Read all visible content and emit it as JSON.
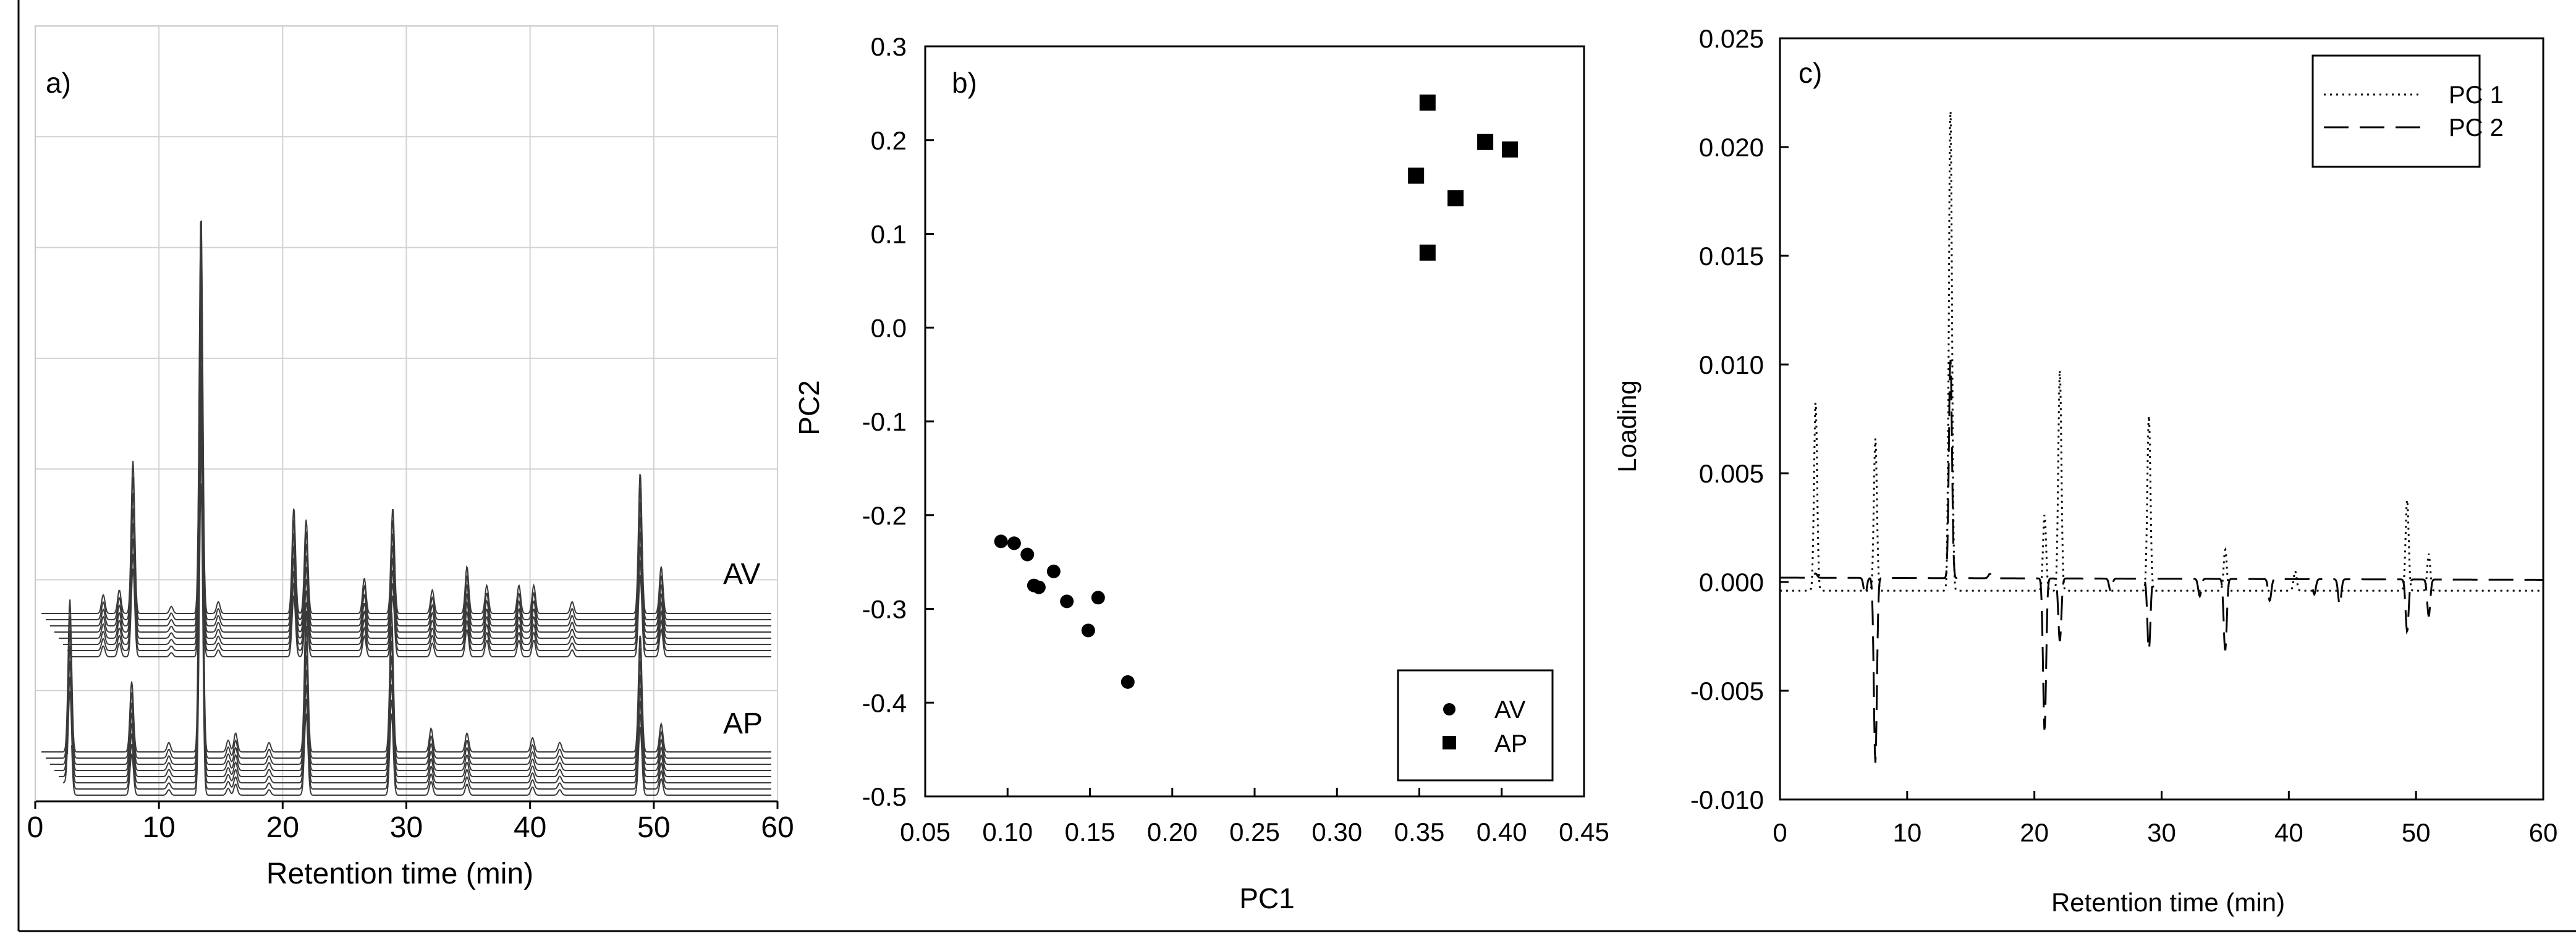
{
  "chart_data": [
    {
      "type": "line",
      "panel_label": "a)",
      "xlabel": "Retention time (min)",
      "ylabel": "",
      "xlim": [
        0,
        60
      ],
      "xticks": [
        0,
        10,
        20,
        30,
        40,
        50,
        60
      ],
      "grid": true,
      "annotations": [
        "AV",
        "AP"
      ],
      "groups": [
        {
          "name": "AV",
          "count": 8,
          "peaks": [
            [
              5.5,
              0.08
            ],
            [
              6.8,
              0.1
            ],
            [
              7.9,
              0.65
            ],
            [
              11.0,
              0.03
            ],
            [
              13.4,
              1.7
            ],
            [
              14.8,
              0.05
            ],
            [
              20.9,
              0.45
            ],
            [
              21.9,
              0.4
            ],
            [
              26.6,
              0.15
            ],
            [
              28.9,
              0.45
            ],
            [
              32.1,
              0.1
            ],
            [
              34.9,
              0.2
            ],
            [
              36.5,
              0.12
            ],
            [
              39.1,
              0.12
            ],
            [
              40.3,
              0.12
            ],
            [
              43.4,
              0.05
            ],
            [
              48.9,
              0.6
            ],
            [
              50.6,
              0.2
            ]
          ]
        },
        {
          "name": "AP",
          "count": 8,
          "peaks": [
            [
              2.8,
              0.65
            ],
            [
              7.8,
              0.3
            ],
            [
              10.8,
              0.04
            ],
            [
              13.4,
              2.3
            ],
            [
              15.6,
              0.05
            ],
            [
              16.2,
              0.08
            ],
            [
              18.9,
              0.04
            ],
            [
              21.9,
              0.6
            ],
            [
              28.8,
              0.6
            ],
            [
              32.0,
              0.1
            ],
            [
              34.9,
              0.08
            ],
            [
              40.2,
              0.06
            ],
            [
              42.4,
              0.04
            ],
            [
              48.9,
              0.5
            ],
            [
              50.6,
              0.12
            ]
          ]
        }
      ]
    },
    {
      "type": "scatter",
      "panel_label": "b)",
      "xlabel": "PC1",
      "ylabel": "PC2",
      "xlim": [
        0.05,
        0.45
      ],
      "ylim": [
        -0.5,
        0.3
      ],
      "xticks": [
        "0.05",
        "0.10",
        "0.15",
        "0.20",
        "0.25",
        "0.30",
        "0.35",
        "0.40",
        "0.45"
      ],
      "yticks": [
        "-0.5",
        "-0.4",
        "-0.3",
        "-0.2",
        "-0.1",
        "0.0",
        "0.1",
        "0.2",
        "0.3"
      ],
      "legend_position": "bottom-right",
      "series": [
        {
          "name": "AV",
          "marker": "circle",
          "points": [
            [
              0.096,
              -0.228
            ],
            [
              0.104,
              -0.23
            ],
            [
              0.112,
              -0.242
            ],
            [
              0.128,
              -0.26
            ],
            [
              0.116,
              -0.275
            ],
            [
              0.119,
              -0.277
            ],
            [
              0.136,
              -0.292
            ],
            [
              0.155,
              -0.288
            ],
            [
              0.149,
              -0.323
            ],
            [
              0.173,
              -0.378
            ]
          ]
        },
        {
          "name": "AP",
          "marker": "square",
          "points": [
            [
              0.355,
              0.24
            ],
            [
              0.39,
              0.198
            ],
            [
              0.405,
              0.19
            ],
            [
              0.348,
              0.162
            ],
            [
              0.372,
              0.138
            ],
            [
              0.355,
              0.08
            ]
          ]
        }
      ]
    },
    {
      "type": "line",
      "panel_label": "c)",
      "xlabel": "Retention time (min)",
      "ylabel": "Loading",
      "xlim": [
        0,
        60
      ],
      "ylim": [
        -0.01,
        0.025
      ],
      "xticks": [
        "0",
        "10",
        "20",
        "30",
        "40",
        "50",
        "60"
      ],
      "yticks": [
        "-0.010",
        "-0.005",
        "0.000",
        "0.005",
        "0.010",
        "0.015",
        "0.020",
        "0.025"
      ],
      "legend_position": "top-right",
      "series": [
        {
          "name": "PC 1",
          "style": "dotted",
          "baseline_start": -0.0004,
          "baseline_end": -0.0004,
          "peaks": [
            [
              2.8,
              0.0083
            ],
            [
              7.5,
              0.0066
            ],
            [
              13.4,
              0.0218
            ],
            [
              20.8,
              0.0031
            ],
            [
              22.0,
              0.0098
            ],
            [
              29.0,
              0.0077
            ],
            [
              35.0,
              0.0015
            ],
            [
              40.5,
              0.0005
            ],
            [
              49.3,
              0.0038
            ],
            [
              51.0,
              0.0013
            ]
          ]
        },
        {
          "name": "PC 2",
          "style": "dashed",
          "baseline_start": 0.0002,
          "baseline_end": 0.0001,
          "peaks": [
            [
              2.8,
              0.0004
            ],
            [
              6.7,
              -0.0006
            ],
            [
              7.5,
              -0.0083
            ],
            [
              13.4,
              0.0103
            ],
            [
              16.5,
              0.0004
            ],
            [
              20.8,
              -0.0068
            ],
            [
              22.0,
              -0.0027
            ],
            [
              26.0,
              -0.0004
            ],
            [
              29.0,
              -0.0031
            ],
            [
              33.0,
              -0.0006
            ],
            [
              35.0,
              -0.0031
            ],
            [
              38.5,
              -0.0008
            ],
            [
              42.0,
              -0.0005
            ],
            [
              44.0,
              -0.001
            ],
            [
              49.3,
              -0.0022
            ],
            [
              51.0,
              -0.0015
            ]
          ]
        }
      ]
    }
  ]
}
